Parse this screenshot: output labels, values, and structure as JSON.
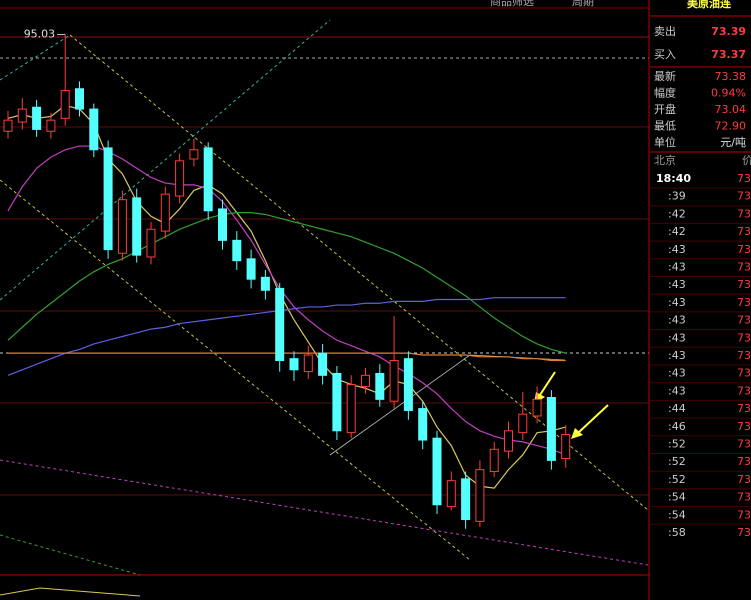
{
  "chart_data": {
    "type": "candlestick",
    "categories": [
      null,
      null,
      null,
      null,
      null,
      null,
      null,
      null,
      null,
      null,
      null,
      null,
      null,
      null,
      null,
      null,
      null,
      null,
      null,
      null,
      null,
      null,
      null,
      null,
      null,
      null,
      null,
      null,
      null,
      null,
      null,
      null,
      null,
      null,
      null,
      null,
      null,
      null,
      null,
      null
    ],
    "open": [
      89.8,
      90.3,
      91.1,
      89.8,
      90.5,
      92.1,
      91.0,
      88.9,
      83.2,
      86.2,
      83.0,
      84.4,
      86.3,
      88.3,
      88.9,
      85.6,
      83.9,
      82.9,
      81.9,
      81.3,
      77.5,
      76.8,
      77.8,
      76.7,
      73.5,
      76.0,
      76.7,
      75.2,
      77.5,
      74.8,
      73.2,
      69.5,
      71.0,
      68.7,
      71.4,
      72.5,
      73.5,
      74.4,
      75.4,
      72.1
    ],
    "high": [
      90.9,
      91.6,
      91.5,
      90.8,
      95.03,
      92.5,
      91.3,
      89.3,
      86.6,
      86.7,
      84.9,
      86.8,
      88.6,
      89.4,
      89.2,
      86.1,
      84.4,
      83.4,
      82.3,
      81.6,
      77.9,
      78.2,
      78.3,
      77.1,
      76.6,
      77.0,
      77.2,
      79.8,
      77.9,
      75.2,
      73.6,
      71.4,
      71.4,
      72.0,
      73.0,
      74.1,
      75.7,
      76.0,
      75.8,
      73.9
    ],
    "low": [
      89.4,
      89.9,
      89.5,
      89.4,
      90.1,
      90.6,
      88.4,
      82.9,
      82.8,
      82.7,
      82.6,
      84.0,
      85.9,
      87.9,
      85.0,
      83.4,
      82.3,
      81.3,
      80.7,
      76.8,
      76.3,
      76.4,
      76.1,
      73.1,
      73.2,
      75.6,
      74.9,
      74.8,
      74.2,
      72.6,
      69.1,
      69.3,
      68.3,
      68.4,
      71.1,
      72.1,
      73.1,
      74.0,
      71.5,
      71.6
    ],
    "close": [
      90.4,
      91.0,
      89.9,
      90.4,
      92.0,
      91.0,
      88.8,
      83.4,
      86.1,
      83.1,
      84.5,
      86.4,
      88.2,
      88.8,
      85.5,
      83.9,
      82.8,
      81.8,
      81.2,
      77.4,
      76.9,
      77.7,
      76.6,
      73.6,
      76.1,
      76.6,
      75.3,
      77.4,
      74.7,
      73.1,
      69.6,
      70.9,
      68.8,
      71.5,
      72.6,
      73.6,
      74.5,
      75.3,
      72.0,
      73.4
    ],
    "up_color": "#ff3b3b",
    "down_color": "#54ffff",
    "high_label": "95.03",
    "high_label_index": 4,
    "ylim": [
      65.8,
      96.9
    ],
    "lines": [
      {
        "color": "#d8c860",
        "values": [
          90.5,
          90.7,
          90.5,
          90.6,
          91.2,
          91.0,
          90.2,
          88.3,
          87.5,
          86.0,
          85.2,
          84.8,
          85.6,
          86.6,
          86.9,
          86.4,
          85.4,
          84.4,
          82.8,
          81.0,
          79.6,
          78.4,
          77.2,
          76.4,
          76.1,
          75.9,
          75.6,
          76.3,
          76.1,
          75.2,
          73.8,
          72.8,
          71.2,
          70.6,
          70.5,
          71.5,
          72.3,
          73.5,
          73.6,
          73.8
        ]
      },
      {
        "color": "#c040c0",
        "values": [
          85.5,
          86.8,
          87.8,
          88.4,
          88.8,
          89.0,
          89.0,
          88.7,
          88.3,
          87.8,
          87.3,
          87.0,
          86.9,
          86.9,
          86.7,
          86.0,
          85.0,
          83.9,
          82.6,
          81.3,
          80.3,
          79.6,
          79.0,
          78.5,
          78.2,
          77.9,
          77.6,
          77.1,
          76.7,
          76.2,
          75.6,
          74.8,
          74.1,
          73.6,
          73.3,
          73.1,
          73.0,
          72.8,
          72.6,
          72.3
        ]
      },
      {
        "color": "#30a030",
        "values": [
          78.5,
          79.2,
          79.9,
          80.5,
          81.1,
          81.7,
          82.2,
          82.6,
          82.9,
          83.3,
          83.7,
          84.1,
          84.5,
          84.8,
          85.1,
          85.3,
          85.4,
          85.4,
          85.3,
          85.1,
          84.9,
          84.7,
          84.5,
          84.3,
          84.1,
          83.8,
          83.5,
          83.2,
          82.8,
          82.4,
          81.9,
          81.4,
          80.9,
          80.3,
          79.7,
          79.2,
          78.7,
          78.3,
          78.0,
          77.8
        ]
      },
      {
        "color": "#6060e0",
        "values": [
          76.6,
          76.9,
          77.2,
          77.5,
          77.8,
          78.0,
          78.3,
          78.5,
          78.7,
          78.9,
          79.1,
          79.2,
          79.4,
          79.5,
          79.6,
          79.7,
          79.8,
          79.9,
          80.0,
          80.1,
          80.2,
          80.3,
          80.3,
          80.4,
          80.4,
          80.5,
          80.5,
          80.6,
          80.6,
          80.6,
          80.7,
          80.7,
          80.7,
          80.7,
          80.8,
          80.8,
          80.8,
          80.8,
          80.8,
          80.8
        ]
      },
      {
        "color": "#e08030",
        "values": [
          77.8,
          77.8,
          77.8,
          77.8,
          77.8,
          77.8,
          77.8,
          77.8,
          77.8,
          77.8,
          77.8,
          77.8,
          77.8,
          77.8,
          77.8,
          77.8,
          77.8,
          77.8,
          77.8,
          77.8,
          77.8,
          77.8,
          77.8,
          77.8,
          77.8,
          77.8,
          77.8,
          77.8,
          77.8,
          77.7,
          77.7,
          77.7,
          77.7,
          77.6,
          77.6,
          77.6,
          77.5,
          77.5,
          77.4,
          77.4
        ]
      }
    ]
  },
  "toolbar": {
    "filter": "商品筛选",
    "period": "周期",
    "symbol": "美原油连"
  },
  "quote": {
    "sell": {
      "label": "卖出",
      "value": "73.39"
    },
    "buy": {
      "label": "买入",
      "value": "73.37"
    },
    "rows": [
      [
        "最新",
        "73.38"
      ],
      [
        "幅度",
        "0.94%"
      ],
      [
        "开盘",
        "73.04"
      ],
      [
        "最低",
        "72.90"
      ],
      [
        "单位",
        "元/吨"
      ]
    ],
    "ticks_header": [
      "北京",
      "价"
    ],
    "ticks": [
      [
        "18:40",
        "73"
      ],
      [
        ":39",
        "73"
      ],
      [
        ":42",
        "73"
      ],
      [
        ":42",
        "73"
      ],
      [
        ":43",
        "73"
      ],
      [
        ":43",
        "73"
      ],
      [
        ":43",
        "73"
      ],
      [
        ":43",
        "73"
      ],
      [
        ":43",
        "73"
      ],
      [
        ":43",
        "73"
      ],
      [
        ":43",
        "73"
      ],
      [
        ":43",
        "73"
      ],
      [
        ":43",
        "73"
      ],
      [
        ":44",
        "73"
      ],
      [
        ":46",
        "73"
      ],
      [
        ":52",
        "73"
      ],
      [
        ":52",
        "73"
      ],
      [
        ":52",
        "73"
      ],
      [
        ":54",
        "73"
      ],
      [
        ":54",
        "73"
      ],
      [
        ":58",
        "73"
      ]
    ]
  }
}
